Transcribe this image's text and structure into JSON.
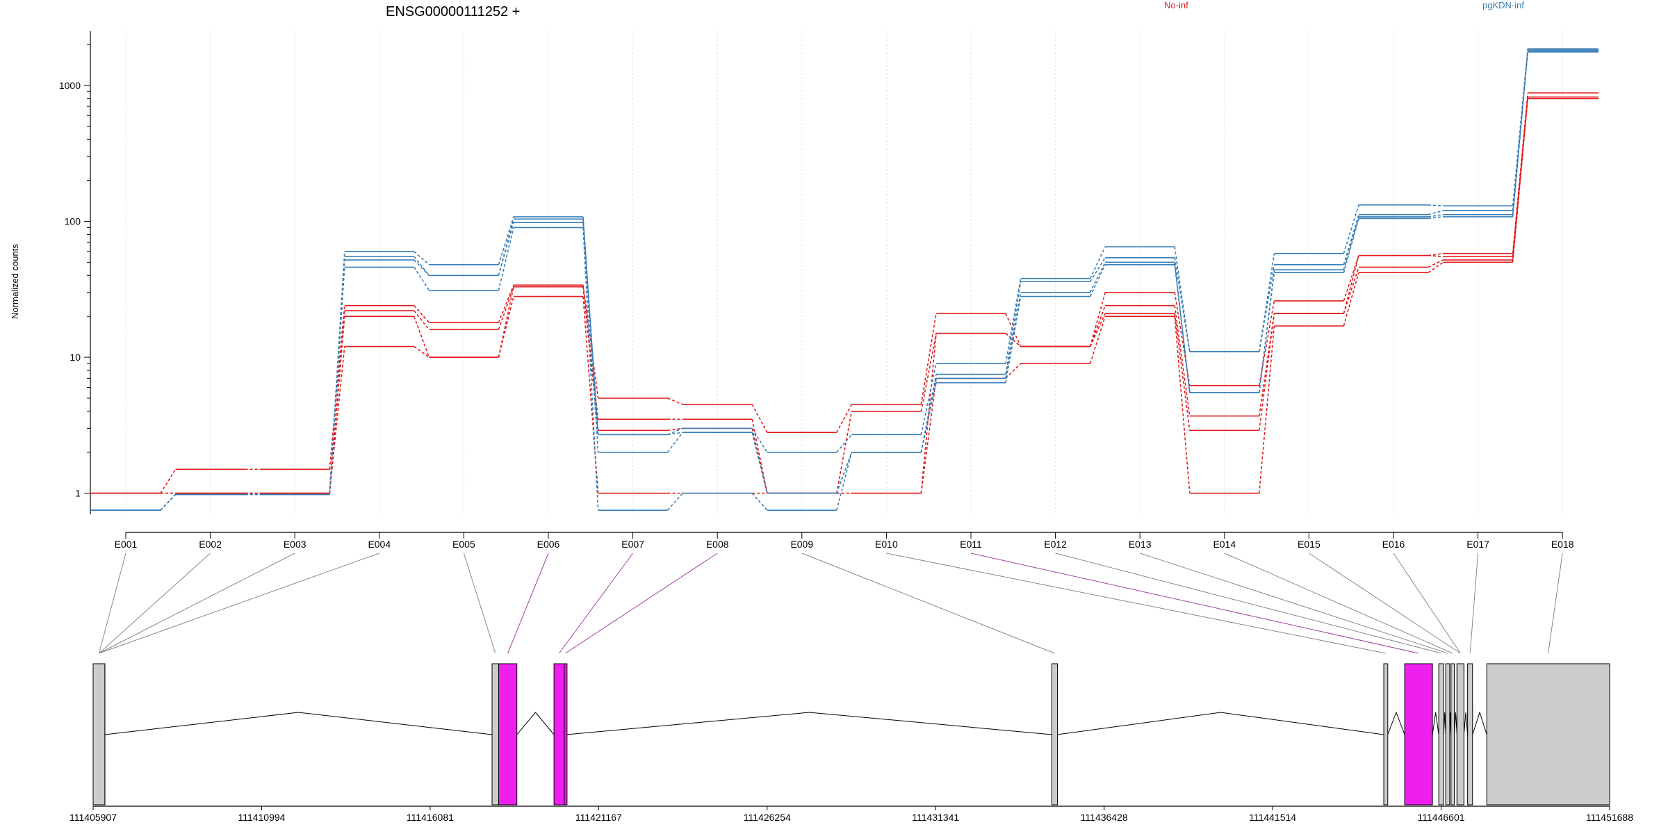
{
  "chart_data": {
    "type": "line",
    "title": "ENSG00000111252 +",
    "ylabel": "Normalized counts",
    "xlabel": "",
    "yscale": "log",
    "ylim": [
      0.7,
      2500
    ],
    "yticks": [
      1,
      10,
      100,
      1000
    ],
    "ytick_labels": [
      "1",
      "10",
      "100",
      "1000"
    ],
    "legend": {
      "placement": "top-right",
      "entries": [
        {
          "label": "No-inf",
          "color": "#e41a1c"
        },
        {
          "label": "pgKDN-inf",
          "color": "#377eb8"
        }
      ]
    },
    "grid": true,
    "categories": [
      "E001",
      "E002",
      "E003",
      "E004",
      "E005",
      "E006",
      "E007",
      "E008",
      "E009",
      "E010",
      "E011",
      "E012",
      "E013",
      "E014",
      "E015",
      "E016",
      "E017",
      "E018"
    ],
    "series": [
      {
        "group": "No-inf",
        "color": "#e41a1c",
        "values": [
          1,
          1.5,
          1.5,
          24,
          18,
          34,
          5,
          4.5,
          2.8,
          4.5,
          21,
          12,
          30,
          6.2,
          26,
          56,
          58,
          880
        ]
      },
      {
        "group": "No-inf",
        "color": "#e41a1c",
        "values": [
          1,
          1,
          1,
          22,
          16,
          33,
          3.5,
          3.5,
          1,
          4,
          15,
          12,
          24,
          3.7,
          21,
          56,
          55,
          820
        ]
      },
      {
        "group": "No-inf",
        "color": "#e41a1c",
        "values": [
          1,
          1,
          1,
          20,
          10,
          33,
          2.9,
          3,
          1,
          1,
          15,
          12,
          21,
          2.9,
          21,
          46,
          52,
          820
        ]
      },
      {
        "group": "No-inf",
        "color": "#e41a1c",
        "values": [
          1,
          1,
          1,
          12,
          10,
          28,
          1,
          1,
          1,
          1,
          7,
          9,
          20,
          1,
          17,
          42,
          50,
          800
        ]
      },
      {
        "group": "pgKDN-inf",
        "color": "#377eb8",
        "values": [
          0.75,
          0.98,
          0.98,
          60,
          48,
          108,
          2.7,
          3,
          2,
          2.7,
          9,
          38,
          65,
          11,
          58,
          132,
          130,
          1860
        ]
      },
      {
        "group": "pgKDN-inf",
        "color": "#377eb8",
        "values": [
          0.75,
          0.98,
          0.98,
          55,
          40,
          104,
          2.7,
          2.8,
          1,
          2,
          7.5,
          36,
          54,
          11,
          48,
          112,
          120,
          1820
        ]
      },
      {
        "group": "pgKDN-inf",
        "color": "#377eb8",
        "values": [
          0.75,
          0.98,
          0.98,
          52,
          40,
          98,
          2,
          2.8,
          1,
          2,
          7,
          30,
          50,
          5.5,
          44,
          108,
          112,
          1800
        ]
      },
      {
        "group": "pgKDN-inf",
        "color": "#377eb8",
        "values": [
          0.75,
          0.98,
          0.98,
          46,
          31,
          90,
          0.75,
          1,
          0.75,
          2,
          6.5,
          28,
          48,
          5.5,
          42,
          105,
          108,
          1760
        ]
      }
    ],
    "genome_axis": {
      "ticks": [
        111405907,
        111410994,
        111416081,
        111421167,
        111426254,
        111431341,
        111436428,
        111441514,
        111446601,
        111451688
      ],
      "tick_labels": [
        "111405907",
        "111410994",
        "111416081",
        "111421167",
        "111426254",
        "111431341",
        "111436428",
        "111441514",
        "111446601",
        "111451688"
      ]
    },
    "exons": [
      {
        "id": "E001",
        "start": 111405907,
        "end": 111406260,
        "highlight": false
      },
      {
        "id": "E002",
        "start": 111405907,
        "end": 111406260,
        "highlight": false
      },
      {
        "id": "E003",
        "start": 111405907,
        "end": 111406260,
        "highlight": false
      },
      {
        "id": "E004",
        "start": 111405907,
        "end": 111406260,
        "highlight": false
      },
      {
        "id": "E005",
        "start": 111417950,
        "end": 111418150,
        "highlight": false
      },
      {
        "id": "E006",
        "start": 111418150,
        "end": 111418700,
        "highlight": true
      },
      {
        "id": "E007",
        "start": 111419820,
        "end": 111420130,
        "highlight": true
      },
      {
        "id": "E008",
        "start": 111420130,
        "end": 111420200,
        "highlight": true
      },
      {
        "id": "E009",
        "start": 111434850,
        "end": 111435020,
        "highlight": false
      },
      {
        "id": "E010",
        "start": 111444870,
        "end": 111444990,
        "highlight": false
      },
      {
        "id": "E011",
        "start": 111445500,
        "end": 111446340,
        "highlight": true
      },
      {
        "id": "E012",
        "start": 111446530,
        "end": 111446680,
        "highlight": false
      },
      {
        "id": "E013",
        "start": 111446740,
        "end": 111446860,
        "highlight": false
      },
      {
        "id": "E014",
        "start": 111446900,
        "end": 111447000,
        "highlight": false
      },
      {
        "id": "E015",
        "start": 111447080,
        "end": 111447290,
        "highlight": false
      },
      {
        "id": "E016",
        "start": 111447080,
        "end": 111447290,
        "highlight": false
      },
      {
        "id": "E017",
        "start": 111447400,
        "end": 111447550,
        "highlight": false
      },
      {
        "id": "E018",
        "start": 111447980,
        "end": 111451688,
        "highlight": false
      }
    ],
    "colors": {
      "no_inf": "#e41a1c",
      "pgkdn_inf": "#377eb8",
      "highlight_exon": "#ef1fef",
      "exon": "#cccccc"
    }
  }
}
